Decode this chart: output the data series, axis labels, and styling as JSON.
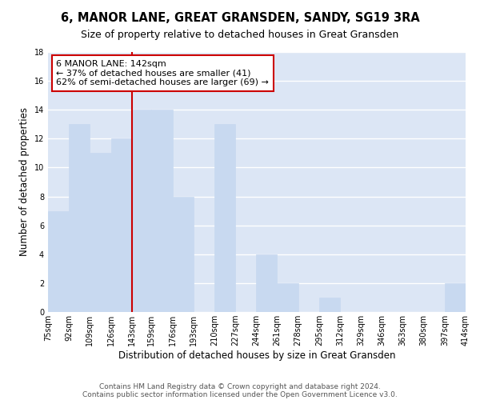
{
  "title": "6, MANOR LANE, GREAT GRANSDEN, SANDY, SG19 3RA",
  "subtitle": "Size of property relative to detached houses in Great Gransden",
  "xlabel": "Distribution of detached houses by size in Great Gransden",
  "ylabel": "Number of detached properties",
  "bar_color": "#c8d9f0",
  "bar_edge_color": "#c8d9f0",
  "grid_color": "#ffffff",
  "background_color": "#dce6f5",
  "annotation_line_color": "#cc0000",
  "annotation_box_edge": "#cc0000",
  "annotation_box_fill": "#ffffff",
  "annotation_line1": "6 MANOR LANE: 142sqm",
  "annotation_line2": "← 37% of detached houses are smaller (41)",
  "annotation_line3": "62% of semi-detached houses are larger (69) →",
  "property_bin_edge": 143,
  "bins": [
    75,
    92,
    109,
    126,
    143,
    159,
    176,
    193,
    210,
    227,
    244,
    261,
    278,
    295,
    312,
    329,
    346,
    363,
    380,
    397,
    414
  ],
  "counts": [
    7,
    13,
    11,
    12,
    14,
    14,
    8,
    0,
    13,
    0,
    4,
    2,
    0,
    1,
    0,
    0,
    0,
    0,
    0,
    2
  ],
  "ylim": [
    0,
    18
  ],
  "yticks": [
    0,
    2,
    4,
    6,
    8,
    10,
    12,
    14,
    16,
    18
  ],
  "footer1": "Contains HM Land Registry data © Crown copyright and database right 2024.",
  "footer2": "Contains public sector information licensed under the Open Government Licence v3.0.",
  "title_fontsize": 10.5,
  "subtitle_fontsize": 9,
  "axis_label_fontsize": 8.5,
  "tick_fontsize": 7,
  "annotation_fontsize": 8,
  "footer_fontsize": 6.5
}
